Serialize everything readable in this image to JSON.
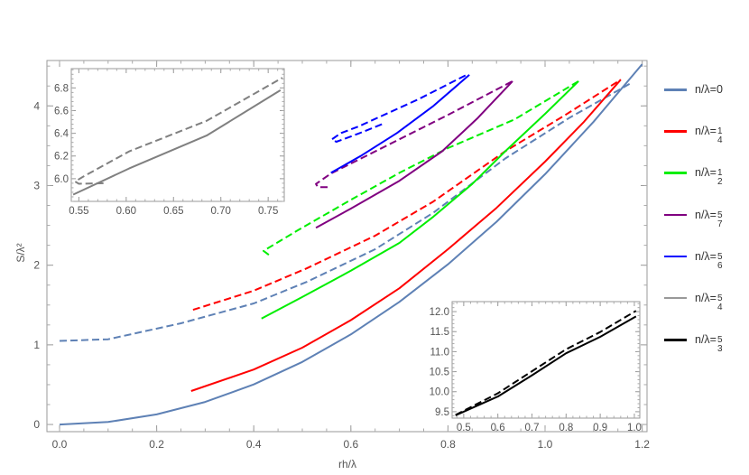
{
  "chart_data": [
    {
      "type": "line",
      "xlabel": "rh/λ",
      "ylabel": "S/λ²",
      "xlim": [
        -0.026,
        1.21
      ],
      "ylim": [
        -0.09,
        4.57
      ],
      "xticks": [
        "0.0",
        "0.2",
        "0.4",
        "0.6",
        "0.8",
        "1.0",
        "1.2"
      ],
      "yticks": [
        "0",
        "1",
        "2",
        "3",
        "4"
      ],
      "grid": false,
      "legend_placement": "right",
      "series": [
        {
          "name": "n/λ=0",
          "legend": {
            "prefix": "n/λ=",
            "value": "0"
          },
          "color": "#5E81B5",
          "solid": [
            [
              0,
              0
            ],
            [
              0.1,
              0.031
            ],
            [
              0.2,
              0.126
            ],
            [
              0.3,
              0.283
            ],
            [
              0.4,
              0.503
            ],
            [
              0.5,
              0.785
            ],
            [
              0.6,
              1.131
            ],
            [
              0.7,
              1.539
            ],
            [
              0.8,
              2.011
            ],
            [
              0.9,
              2.545
            ],
            [
              1.0,
              3.142
            ],
            [
              1.1,
              3.801
            ],
            [
              1.2,
              4.524
            ]
          ],
          "dashed": [
            [
              0,
              1.05
            ],
            [
              0.1,
              1.07
            ],
            [
              0.249,
              1.27
            ],
            [
              0.4,
              1.52
            ],
            [
              0.509,
              1.79
            ],
            [
              0.65,
              2.2
            ],
            [
              0.77,
              2.66
            ],
            [
              0.918,
              3.34
            ],
            [
              1.05,
              3.85
            ],
            [
              1.175,
              4.28
            ]
          ]
        },
        {
          "name": "n/λ=1/4",
          "legend": {
            "prefix": "n/λ=",
            "num": "1",
            "den": "4"
          },
          "color": "#FF0000",
          "solid": [
            [
              0.271,
              0.42
            ],
            [
              0.4,
              0.69
            ],
            [
              0.5,
              0.965
            ],
            [
              0.6,
              1.31
            ],
            [
              0.7,
              1.71
            ],
            [
              0.8,
              2.2
            ],
            [
              0.9,
              2.72
            ],
            [
              1.0,
              3.3
            ],
            [
              1.08,
              3.8
            ],
            [
              1.156,
              4.33
            ]
          ],
          "dashed": [
            [
              0.275,
              1.44
            ],
            [
              0.4,
              1.68
            ],
            [
              0.509,
              1.96
            ],
            [
              0.65,
              2.37
            ],
            [
              0.77,
              2.8
            ],
            [
              0.918,
              3.43
            ],
            [
              1.04,
              3.88
            ],
            [
              1.156,
              4.33
            ]
          ]
        },
        {
          "name": "n/λ=1/2",
          "legend": {
            "prefix": "n/λ=",
            "num": "1",
            "den": "2"
          },
          "color": "#00EE00",
          "solid": [
            [
              0.416,
              1.33
            ],
            [
              0.5,
              1.6
            ],
            [
              0.6,
              1.93
            ],
            [
              0.7,
              2.28
            ],
            [
              0.77,
              2.61
            ],
            [
              0.85,
              3.02
            ],
            [
              0.918,
              3.43
            ],
            [
              1.0,
              3.9
            ],
            [
              1.069,
              4.31
            ]
          ],
          "dashed": [
            [
              0.431,
              2.13
            ],
            [
              0.42,
              2.18
            ],
            [
              0.491,
              2.44
            ],
            [
              0.6,
              2.82
            ],
            [
              0.7,
              3.16
            ],
            [
              0.8,
              3.47
            ],
            [
              0.937,
              3.83
            ],
            [
              1.069,
              4.31
            ]
          ]
        },
        {
          "name": "n/λ=5/7",
          "legend": {
            "prefix": "n/λ=",
            "num": "5",
            "den": "7"
          },
          "color": "#800080",
          "solid": [
            [
              0.528,
              2.47
            ],
            [
              0.6,
              2.71
            ],
            [
              0.7,
              3.06
            ],
            [
              0.788,
              3.43
            ],
            [
              0.86,
              3.84
            ],
            [
              0.933,
              4.31
            ]
          ],
          "dashed": [
            [
              0.552,
              2.98
            ],
            [
              0.532,
              2.98
            ],
            [
              0.528,
              3.02
            ],
            [
              0.559,
              3.15
            ],
            [
              0.68,
              3.52
            ],
            [
              0.801,
              3.89
            ],
            [
              0.933,
              4.31
            ]
          ]
        },
        {
          "name": "n/λ=5/6",
          "legend": {
            "prefix": "n/λ=",
            "num": "5",
            "den": "6"
          },
          "color": "#0000FF",
          "solid": [
            [
              0.559,
              3.16
            ],
            [
              0.62,
              3.37
            ],
            [
              0.695,
              3.66
            ],
            [
              0.77,
              4.0
            ],
            [
              0.844,
              4.39
            ]
          ],
          "dashed": [
            [
              0.664,
              3.77
            ],
            [
              0.615,
              3.65
            ],
            [
              0.57,
              3.55
            ],
            [
              0.561,
              3.58
            ],
            [
              0.58,
              3.66
            ],
            [
              0.615,
              3.74
            ],
            [
              0.738,
              4.08
            ],
            [
              0.838,
              4.39
            ]
          ]
        },
        {
          "name": "n/λ=5/4",
          "legend": {
            "prefix": "n/λ=",
            "num": "5",
            "den": "4"
          },
          "color": "#999999"
        },
        {
          "name": "n/λ=5/3",
          "legend": {
            "prefix": "n/λ=",
            "num": "5",
            "den": "3"
          },
          "color": "#000000"
        }
      ]
    },
    {
      "type": "line",
      "xlim": [
        0.542,
        0.767
      ],
      "ylim": [
        5.8,
        6.97
      ],
      "xticks": [
        "0.55",
        "0.60",
        "0.65",
        "0.70",
        "0.75"
      ],
      "yticks": [
        "6.0",
        "6.2",
        "6.4",
        "6.6",
        "6.8"
      ],
      "color": "#808080",
      "solid": [
        [
          0.544,
          5.86
        ],
        [
          0.603,
          6.09
        ],
        [
          0.685,
          6.38
        ],
        [
          0.763,
          6.78
        ]
      ],
      "dashed": [
        [
          0.576,
          5.96
        ],
        [
          0.55,
          5.955
        ],
        [
          0.546,
          5.975
        ],
        [
          0.555,
          6.02
        ],
        [
          0.603,
          6.24
        ],
        [
          0.685,
          6.51
        ],
        [
          0.765,
          6.89
        ]
      ]
    },
    {
      "type": "line",
      "xlim": [
        0.466,
        1.016
      ],
      "ylim": [
        9.34,
        12.25
      ],
      "xticks": [
        "0.5",
        "0.6",
        "0.7",
        "0.8",
        "0.9",
        "1.0"
      ],
      "yticks": [
        "9.5",
        "10.0",
        "10.5",
        "11.0",
        "11.5",
        "12.0"
      ],
      "color": "#000000",
      "solid": [
        [
          0.476,
          9.41
        ],
        [
          0.6,
          9.88
        ],
        [
          0.7,
          10.41
        ],
        [
          0.8,
          10.96
        ],
        [
          0.9,
          11.37
        ],
        [
          1.005,
          11.88
        ]
      ],
      "dashed": [
        [
          0.476,
          9.42
        ],
        [
          0.6,
          9.96
        ],
        [
          0.7,
          10.51
        ],
        [
          0.8,
          11.06
        ],
        [
          0.9,
          11.49
        ],
        [
          1.005,
          12.02
        ]
      ]
    }
  ]
}
